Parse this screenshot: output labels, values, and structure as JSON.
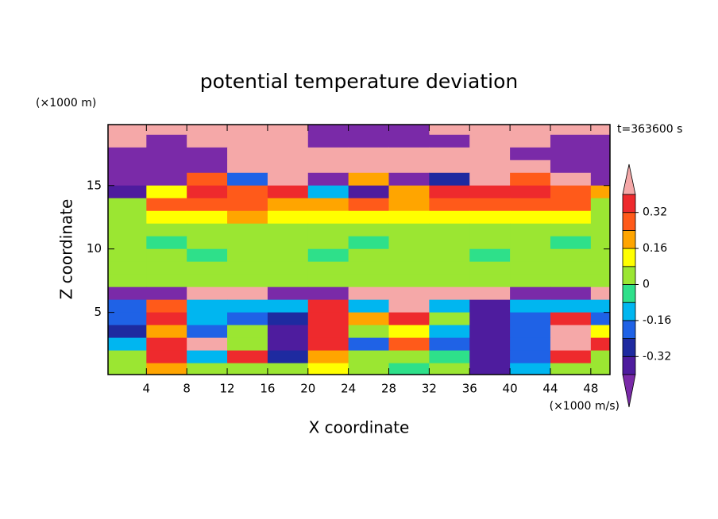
{
  "chart_data": {
    "type": "contour",
    "title": "potential temperature deviation",
    "y_unit": "(×1000 m)",
    "x_unit": "(×1000 m/s)",
    "time_label": "t=363600 s",
    "xlabel": "X coordinate",
    "ylabel": "Z coordinate",
    "xlim": [
      0.2,
      49.9
    ],
    "ylim": [
      0.1,
      19.8
    ],
    "xticks": [
      4,
      8,
      12,
      16,
      20,
      24,
      28,
      32,
      36,
      40,
      44,
      48
    ],
    "yticks": [
      5,
      10,
      15
    ],
    "levels": [
      -0.4,
      -0.32,
      -0.24,
      -0.16,
      -0.08,
      0,
      0.08,
      0.16,
      0.24,
      0.32,
      0.4
    ],
    "colors": [
      "#7a2aa8",
      "#4e1c9e",
      "#1e2aa0",
      "#1f62e6",
      "#00b6f0",
      "#2ee08a",
      "#9be632",
      "#ffff00",
      "#ffa500",
      "#ff5a1a",
      "#ee2a2d",
      "#f5a8a8"
    ],
    "colorbar_ticks": [
      -0.32,
      -0.16,
      0,
      0.16,
      0.32
    ],
    "x": [
      2,
      6,
      10,
      14,
      18,
      22,
      26,
      30,
      34,
      38,
      42,
      46,
      50
    ],
    "y": [
      19.5,
      18.5,
      17.5,
      16.5,
      15.5,
      14.5,
      13.5,
      12.5,
      11.5,
      10.5,
      9.5,
      8.5,
      7.5,
      6.5,
      5.5,
      4.5,
      3.5,
      2.5,
      1.5,
      0.5
    ],
    "z": [
      [
        0.5,
        0.5,
        0.5,
        0.5,
        0.5,
        -0.5,
        -0.5,
        -0.5,
        0.5,
        0.5,
        0.5,
        0.5,
        0.5
      ],
      [
        0.5,
        -0.5,
        0.5,
        0.5,
        0.5,
        -0.5,
        -0.5,
        -0.5,
        -0.5,
        0.5,
        0.5,
        -0.5,
        -0.5
      ],
      [
        -0.5,
        -0.5,
        -0.5,
        0.5,
        0.5,
        0.5,
        0.5,
        0.5,
        0.5,
        0.5,
        -0.5,
        -0.5,
        -0.5
      ],
      [
        -0.5,
        -0.5,
        -0.5,
        0.5,
        0.5,
        0.5,
        0.5,
        0.5,
        0.5,
        0.5,
        0.5,
        -0.5,
        -0.5
      ],
      [
        -0.5,
        -0.5,
        0.3,
        -0.2,
        0.5,
        -0.45,
        0.2,
        -0.45,
        -0.3,
        0.5,
        0.3,
        0.5,
        -0.5
      ],
      [
        -0.36,
        0.1,
        0.36,
        0.28,
        0.36,
        -0.1,
        -0.36,
        0.2,
        0.36,
        0.36,
        0.36,
        0.28,
        0.2
      ],
      [
        0.05,
        0.28,
        0.28,
        0.28,
        0.2,
        0.2,
        0.28,
        0.2,
        0.28,
        0.28,
        0.28,
        0.28,
        0.05
      ],
      [
        0.05,
        0.12,
        0.12,
        0.2,
        0.12,
        0.12,
        0.12,
        0.12,
        0.12,
        0.12,
        0.12,
        0.12,
        0.05
      ],
      [
        0.04,
        0.04,
        0.04,
        0.04,
        0.04,
        0.04,
        0.04,
        0.04,
        0.04,
        0.04,
        0.04,
        0.04,
        0.04
      ],
      [
        0.04,
        -0.04,
        0.04,
        0.04,
        0.04,
        0.04,
        -0.04,
        0.04,
        0.04,
        0.04,
        0.04,
        -0.04,
        0.04
      ],
      [
        0.04,
        0.04,
        -0.04,
        0.04,
        0.04,
        -0.04,
        0.04,
        0.04,
        0.04,
        -0.04,
        0.04,
        0.04,
        0.04
      ],
      [
        0.04,
        0.04,
        0.04,
        0.04,
        0.04,
        0.04,
        0.04,
        0.04,
        0.04,
        0.04,
        0.04,
        0.04,
        0.04
      ],
      [
        0.04,
        0.04,
        0.04,
        0.04,
        0.04,
        0.04,
        0.04,
        0.04,
        0.04,
        0.04,
        0.04,
        0.04,
        0.04
      ],
      [
        -0.5,
        -0.5,
        0.5,
        0.5,
        -0.5,
        -0.5,
        0.5,
        0.5,
        0.5,
        0.5,
        -0.5,
        -0.5,
        0.5
      ],
      [
        -0.2,
        0.3,
        -0.1,
        -0.1,
        -0.1,
        0.36,
        -0.1,
        0.5,
        -0.1,
        -0.36,
        -0.1,
        -0.1,
        -0.1
      ],
      [
        -0.2,
        0.36,
        -0.1,
        -0.2,
        -0.3,
        0.36,
        0.2,
        0.36,
        0.05,
        -0.36,
        -0.2,
        0.36,
        -0.2
      ],
      [
        -0.3,
        0.2,
        -0.2,
        0.05,
        -0.36,
        0.36,
        0.05,
        0.1,
        -0.1,
        -0.36,
        -0.2,
        0.5,
        0.1
      ],
      [
        -0.1,
        0.36,
        0.5,
        0.05,
        -0.36,
        0.36,
        -0.2,
        0.28,
        -0.2,
        -0.36,
        -0.2,
        0.5,
        0.36
      ],
      [
        0.05,
        0.36,
        -0.1,
        0.36,
        -0.3,
        0.2,
        0.05,
        0.05,
        -0.05,
        -0.36,
        -0.2,
        0.36,
        0.05
      ],
      [
        0.05,
        0.2,
        0.05,
        0.05,
        0.05,
        0.12,
        0.05,
        -0.05,
        0.05,
        -0.36,
        -0.1,
        0.05,
        0.05
      ]
    ]
  }
}
